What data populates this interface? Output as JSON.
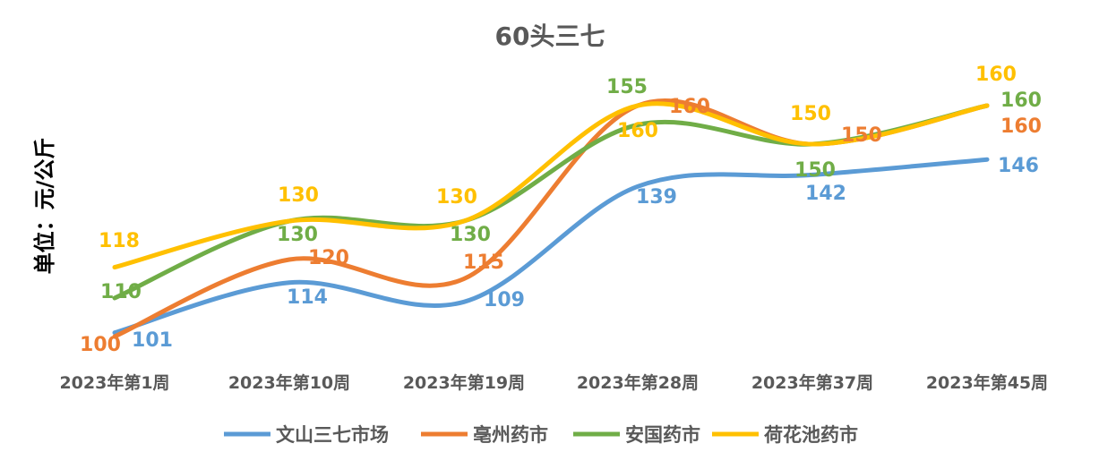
{
  "chart_data": {
    "type": "line",
    "title": "60头三七",
    "xlabel": "",
    "ylabel": "单位：元/公斤",
    "categories": [
      "2023年第1周",
      "2023年第10周",
      "2023年第19周",
      "2023年第28周",
      "2023年第37周",
      "2023年第45周"
    ],
    "ylim": [
      100,
      160
    ],
    "grid": false,
    "legend_position": "bottom",
    "series": [
      {
        "name": "文山三七市场",
        "color": "#5B9BD5",
        "values": [
          101,
          114,
          109,
          139,
          142,
          146
        ]
      },
      {
        "name": "亳州药市",
        "color": "#ED7D31",
        "values": [
          100,
          120,
          115,
          160,
          150,
          160
        ]
      },
      {
        "name": "安国药市",
        "color": "#70AD47",
        "values": [
          110,
          130,
          130,
          155,
          150,
          160
        ]
      },
      {
        "name": "荷花池药市",
        "color": "#FFC000",
        "values": [
          118,
          130,
          130,
          160,
          150,
          160
        ]
      }
    ]
  }
}
